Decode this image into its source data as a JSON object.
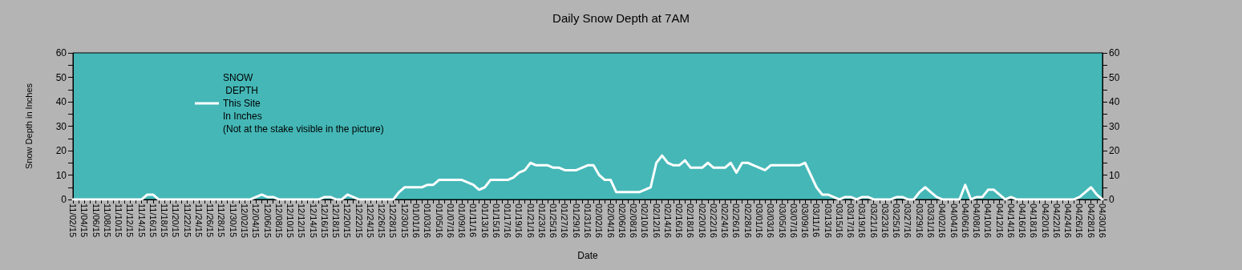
{
  "chart_data": {
    "type": "line",
    "title": "Daily Snow Depth at 7AM",
    "xlabel": "Date",
    "ylabel": "Snow Depth in Inches",
    "categories": [
      "11/02/15",
      null,
      "11/04/15",
      null,
      "11/06/15",
      null,
      "11/08/15",
      null,
      "11/10/15",
      null,
      "11/12/15",
      null,
      "11/14/15",
      null,
      "11/16/15",
      null,
      "11/18/15",
      null,
      "11/20/15",
      null,
      "11/22/15",
      null,
      "11/24/15",
      null,
      "11/26/15",
      null,
      "11/28/15",
      null,
      "11/30/15",
      null,
      "12/02/15",
      null,
      "12/04/15",
      null,
      "12/06/15",
      null,
      "12/08/15",
      null,
      "12/10/15",
      null,
      "12/12/15",
      null,
      "12/14/15",
      null,
      "12/16/15",
      null,
      "12/18/15",
      null,
      "12/20/15",
      null,
      "12/22/15",
      null,
      "12/24/15",
      null,
      "12/26/15",
      null,
      "12/28/15",
      null,
      "12/30/15",
      null,
      "01/01/16",
      null,
      "01/03/16",
      null,
      "01/05/16",
      null,
      "01/07/16",
      null,
      "01/09/16",
      null,
      "01/11/16",
      null,
      "01/13/16",
      null,
      "01/15/16",
      null,
      "01/17/16",
      null,
      "01/19/16",
      null,
      "01/21/16",
      null,
      "01/23/16",
      null,
      "01/25/16",
      null,
      "01/27/16",
      null,
      "01/29/16",
      null,
      "01/31/16",
      null,
      "02/02/16",
      null,
      "02/04/16",
      null,
      "02/06/16",
      null,
      "02/08/16",
      null,
      "02/10/16",
      null,
      "02/12/16",
      null,
      "02/14/16",
      null,
      "02/16/16",
      null,
      "02/18/16",
      null,
      "02/20/16",
      null,
      "02/22/16",
      null,
      "02/24/16",
      null,
      "02/26/16",
      null,
      "02/28/16",
      null,
      "03/01/16",
      null,
      "03/03/16",
      null,
      "03/05/16",
      null,
      "03/07/16",
      null,
      "03/09/16",
      null,
      "03/11/16",
      null,
      "03/13/16",
      null,
      "03/15/16",
      null,
      "03/17/16",
      null,
      "03/19/16",
      null,
      "03/21/16",
      null,
      "03/23/16",
      null,
      "03/25/16",
      null,
      "03/27/16",
      null,
      "03/29/16",
      null,
      "03/31/16",
      null,
      "04/02/16",
      null,
      "04/04/16",
      null,
      "04/06/16",
      null,
      "04/08/16",
      null,
      "04/10/16",
      null,
      "04/12/16",
      null,
      "04/14/16",
      null,
      "04/16/16",
      null,
      "04/18/16",
      null,
      "04/20/16",
      null,
      "04/22/16",
      null,
      "04/24/16",
      null,
      "04/26/16",
      null,
      "04/28/16",
      null,
      "04/30/16"
    ],
    "series": [
      {
        "name": "SNOW\n DEPTH\nThis Site\nIn Inches\n(Not at the stake visible in the picture)",
        "color": "#ffffff",
        "values": [
          0,
          0,
          0,
          0,
          0,
          0,
          0,
          0,
          0,
          0,
          0,
          0,
          0,
          2,
          2,
          0,
          0,
          0,
          0,
          0,
          0,
          0,
          0,
          0,
          0,
          0,
          0,
          0,
          0,
          0,
          0,
          0,
          1,
          2,
          1,
          1,
          0,
          0,
          0,
          0,
          0,
          0,
          0,
          0,
          1,
          1,
          0,
          0,
          2,
          1,
          0,
          0,
          0,
          0,
          0,
          0,
          0,
          3,
          5,
          5,
          5,
          5,
          6,
          6,
          8,
          8,
          8,
          8,
          8,
          7,
          6,
          4,
          5,
          8,
          8,
          8,
          8,
          9,
          11,
          12,
          15,
          14,
          14,
          14,
          13,
          13,
          12,
          12,
          12,
          13,
          14,
          14,
          10,
          8,
          8,
          3,
          3,
          3,
          3,
          3,
          4,
          5,
          15,
          18,
          15,
          14,
          14,
          16,
          13,
          13,
          13,
          15,
          13,
          13,
          13,
          15,
          11,
          15,
          15,
          14,
          13,
          12,
          14,
          14,
          14,
          14,
          14,
          14,
          15,
          10,
          5,
          2,
          2,
          1,
          0,
          1,
          1,
          0,
          1,
          1,
          0,
          0,
          0,
          0,
          1,
          1,
          0,
          0,
          3,
          5,
          3,
          1,
          0,
          0,
          0,
          0,
          6,
          0,
          1,
          1,
          4,
          4,
          2,
          0,
          1,
          0,
          0,
          0,
          0,
          0,
          0,
          0,
          0,
          0,
          0,
          0,
          1,
          3,
          5,
          2,
          0
        ]
      }
    ],
    "ylim": [
      0,
      60
    ],
    "yticks": [
      0,
      {
        "value": 5,
        "label": null
      },
      10,
      {
        "value": 15,
        "label": null
      },
      20,
      {
        "value": 25,
        "label": null
      },
      30,
      {
        "value": 35,
        "label": null
      },
      40,
      {
        "value": 45,
        "label": null
      },
      50,
      {
        "value": 55,
        "label": null
      },
      60
    ],
    "y2lim": [
      0,
      60
    ],
    "y2ticks": [
      0,
      {
        "value": 5,
        "label": null
      },
      10,
      {
        "value": 15,
        "label": null
      },
      20,
      {
        "value": 25,
        "label": null
      },
      30,
      {
        "value": 35,
        "label": null
      },
      40,
      {
        "value": 45,
        "label": null
      },
      50,
      {
        "value": 55,
        "label": null
      },
      60
    ],
    "grid": false,
    "legend": "top left",
    "marker": "none",
    "line_style": "solid"
  }
}
